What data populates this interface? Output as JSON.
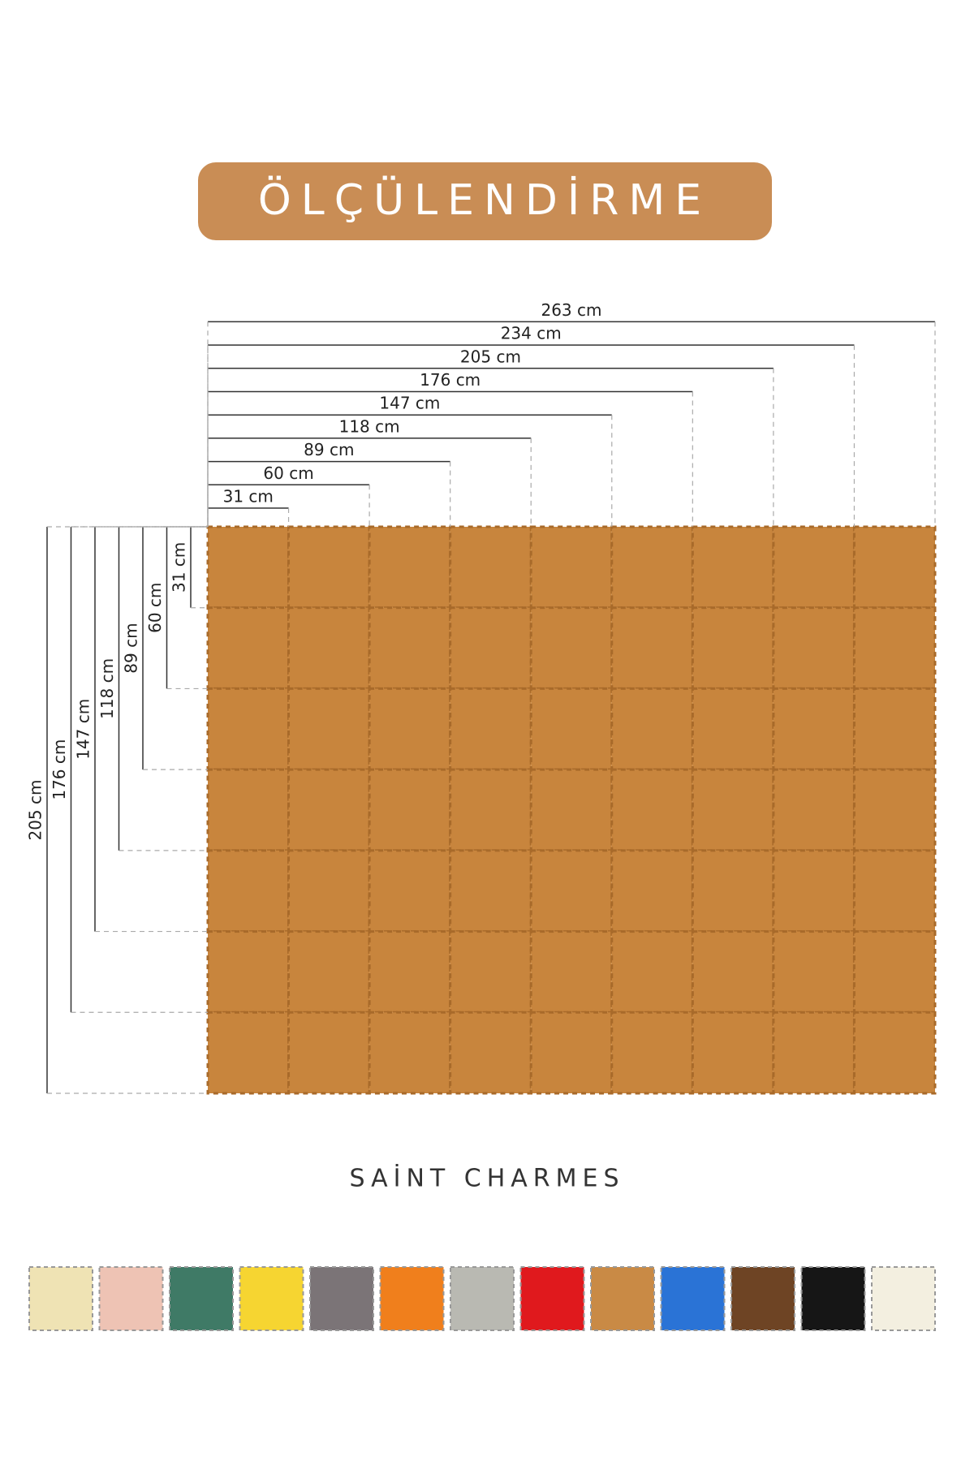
{
  "header": {
    "title": "ÖLÇÜLENDİRME"
  },
  "grid": {
    "columns": 9,
    "rows": 7,
    "tile_color": "#c8853d"
  },
  "width_labels": [
    "31 cm",
    "60 cm",
    "89 cm",
    "118 cm",
    "147 cm",
    "176 cm",
    "205 cm",
    "234 cm",
    "263 cm"
  ],
  "height_labels": [
    "31 cm",
    "60 cm",
    "89 cm",
    "118 cm",
    "147 cm",
    "176 cm",
    "205 cm"
  ],
  "brand": "SAİNT CHARMES",
  "swatches": [
    "#efe3b4",
    "#eec3b4",
    "#3f7a66",
    "#f6d531",
    "#7b7477",
    "#f07f1c",
    "#b9b9b2",
    "#e0191d",
    "#c98a45",
    "#2a73d6",
    "#6e4424",
    "#161616",
    "#f3efe0"
  ]
}
